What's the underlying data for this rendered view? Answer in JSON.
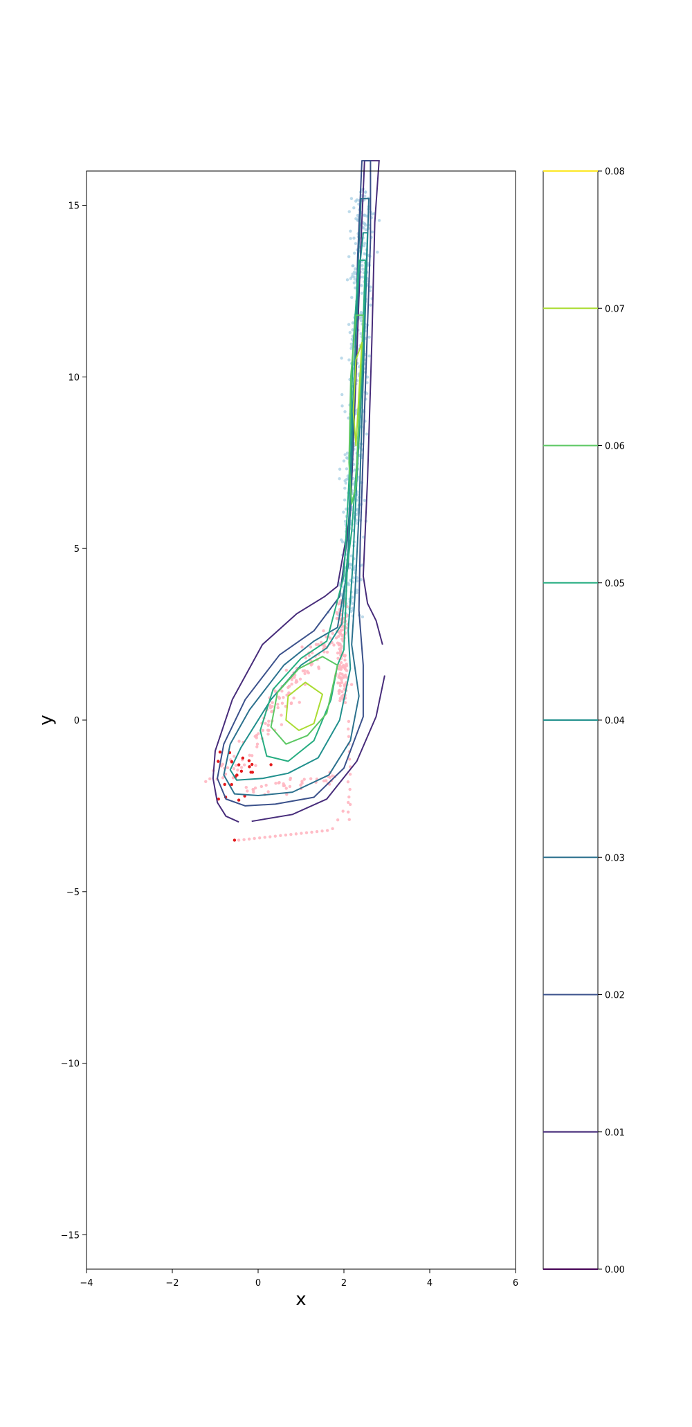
{
  "chart_data": {
    "type": "contour",
    "xlabel": "x",
    "ylabel": "y",
    "xlim": [
      -4,
      6
    ],
    "ylim": [
      -16,
      16
    ],
    "x_ticks": [
      -4,
      -2,
      0,
      2,
      4,
      6
    ],
    "y_ticks": [
      -15,
      -10,
      -5,
      0,
      5,
      10,
      15
    ],
    "grid": false,
    "colorbar": {
      "position": "right",
      "range": [
        0,
        0.08
      ],
      "ticks": [
        "0.00",
        "0.01",
        "0.02",
        "0.03",
        "0.04",
        "0.05",
        "0.06",
        "0.07",
        "0.08"
      ],
      "tick_values": [
        0,
        0.01,
        0.02,
        0.03,
        0.04,
        0.05,
        0.06,
        0.07,
        0.08
      ],
      "colors": [
        "#440154",
        "#472c7a",
        "#3b518b",
        "#2c718e",
        "#21908d",
        "#27ad81",
        "#5cc863",
        "#aadc32",
        "#fde725"
      ]
    },
    "contour_levels": [
      {
        "level": 0.01,
        "color": "#472c7a"
      },
      {
        "level": 0.02,
        "color": "#3b518b"
      },
      {
        "level": 0.03,
        "color": "#2c718e"
      },
      {
        "level": 0.04,
        "color": "#21908d"
      },
      {
        "level": 0.05,
        "color": "#27ad81"
      },
      {
        "level": 0.06,
        "color": "#5cc863"
      },
      {
        "level": 0.07,
        "color": "#aadc32"
      }
    ],
    "scatter_series": [
      {
        "color": "#a6cee3"
      },
      {
        "color": "#ffb6c1"
      },
      {
        "color": "#e41a1c"
      }
    ]
  }
}
